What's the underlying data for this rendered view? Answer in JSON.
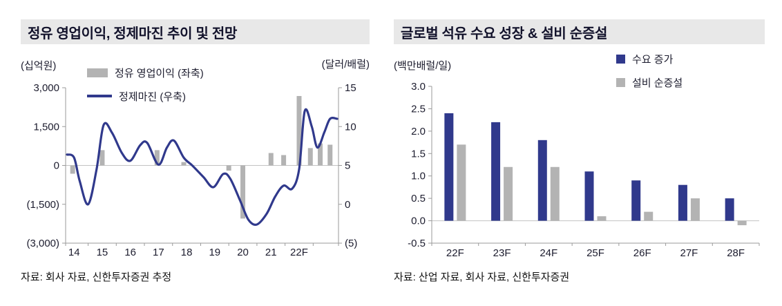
{
  "colors": {
    "navy": "#30398c",
    "gray_bar": "#b3b3b3",
    "title_bg": "#e8e8e8",
    "title_text": "#12122b",
    "axis_text": "#1c1c2e",
    "axis_line": "#9a9a9a",
    "zero_line": "#c2c2c2"
  },
  "left_panel": {
    "title": "정유 영업이익, 정제마진 추이 및 전망",
    "unit_left": "(십억원)",
    "unit_right": "(달러/배럴)",
    "source": "자료: 회사 자료, 신한투자증권 추정"
  },
  "right_panel": {
    "title": "글로벌 석유 수요 성장 & 설비 순증설",
    "unit": "(백만배럴/일)",
    "source": "자료: 산업 자료, 회사 자료, 신한투자증권"
  },
  "chart_data": [
    {
      "type": "bar",
      "subtype": "bar+line dual axis",
      "title": "정유 영업이익, 정제마진 추이 및 전망",
      "x_ticks": [
        "14",
        "15",
        "16",
        "17",
        "18",
        "19",
        "20",
        "21",
        "22F"
      ],
      "x_tick_positions": [
        14,
        15,
        16,
        17,
        18,
        19,
        20,
        21,
        22
      ],
      "x_range": [
        13.7,
        23.4
      ],
      "left_axis": {
        "label": "(십억원)",
        "ticks": [
          "3,000",
          "1,500",
          "0",
          "(1,500)",
          "(3,000)"
        ],
        "tick_values": [
          3000,
          1500,
          0,
          -1500,
          -3000
        ],
        "range": [
          -3000,
          3000
        ]
      },
      "right_axis": {
        "label": "(달러/배럴)",
        "ticks": [
          "15",
          "10",
          "5",
          "0",
          "(5)"
        ],
        "tick_values": [
          15,
          10,
          5,
          0,
          -5
        ],
        "range": [
          -5,
          15
        ]
      },
      "series": [
        {
          "name": "정유 영업이익 (좌축)",
          "type": "bar",
          "axis": "left",
          "color": "#b3b3b3",
          "points": [
            [
              13.95,
              -320
            ],
            [
              15.0,
              590
            ],
            [
              16.95,
              590
            ],
            [
              17.9,
              130
            ],
            [
              19.5,
              -200
            ],
            [
              20.0,
              -2050
            ],
            [
              21.0,
              480
            ],
            [
              21.45,
              400
            ],
            [
              22.0,
              2680
            ],
            [
              22.4,
              670
            ],
            [
              22.75,
              850
            ],
            [
              23.1,
              800
            ]
          ]
        },
        {
          "name": "정제마진 (우축)",
          "type": "line",
          "axis": "right",
          "color": "#30398c",
          "points": [
            [
              13.75,
              6.4
            ],
            [
              14.0,
              6.0
            ],
            [
              14.2,
              3.0
            ],
            [
              14.5,
              0.0
            ],
            [
              14.8,
              4.5
            ],
            [
              15.05,
              10.2
            ],
            [
              15.35,
              9.2
            ],
            [
              15.7,
              6.6
            ],
            [
              16.0,
              5.6
            ],
            [
              16.35,
              7.6
            ],
            [
              16.6,
              7.9
            ],
            [
              17.0,
              5.1
            ],
            [
              17.3,
              7.3
            ],
            [
              17.55,
              8.2
            ],
            [
              17.9,
              6.0
            ],
            [
              18.2,
              5.0
            ],
            [
              18.6,
              3.5
            ],
            [
              18.95,
              2.2
            ],
            [
              19.3,
              3.9
            ],
            [
              19.55,
              3.3
            ],
            [
              19.9,
              0.5
            ],
            [
              20.2,
              -2.0
            ],
            [
              20.5,
              -2.6
            ],
            [
              20.85,
              -1.2
            ],
            [
              21.15,
              1.0
            ],
            [
              21.45,
              2.4
            ],
            [
              21.75,
              2.0
            ],
            [
              22.0,
              4.5
            ],
            [
              22.2,
              12.0
            ],
            [
              22.45,
              10.0
            ],
            [
              22.65,
              7.3
            ],
            [
              22.9,
              9.3
            ],
            [
              23.1,
              11.0
            ],
            [
              23.35,
              11.0
            ]
          ]
        }
      ],
      "legend_position": "top-left inside",
      "grid": false,
      "source": "자료: 회사 자료, 신한투자증권 추정"
    },
    {
      "type": "bar",
      "title": "글로벌 석유 수요 성장 & 설비 순증설",
      "categories": [
        "22F",
        "23F",
        "24F",
        "25F",
        "26F",
        "27F",
        "28F"
      ],
      "series": [
        {
          "name": "수요 증가",
          "color": "#30398c",
          "values": [
            2.4,
            2.2,
            1.8,
            1.1,
            0.9,
            0.8,
            0.5
          ]
        },
        {
          "name": "설비 순증설",
          "color": "#b3b3b3",
          "values": [
            1.7,
            1.2,
            1.2,
            0.1,
            0.2,
            0.5,
            -0.1
          ]
        }
      ],
      "ylabel": "(백만배럴/일)",
      "y_ticks": [
        "3.0",
        "2.5",
        "2.0",
        "1.5",
        "1.0",
        "0.5",
        "0.0",
        "-0.5"
      ],
      "y_tick_values": [
        3.0,
        2.5,
        2.0,
        1.5,
        1.0,
        0.5,
        0.0,
        -0.5
      ],
      "ylim": [
        -0.5,
        3.0
      ],
      "legend_position": "top-right inside",
      "grid": false,
      "source": "자료: 산업 자료, 회사 자료, 신한투자증권"
    }
  ]
}
